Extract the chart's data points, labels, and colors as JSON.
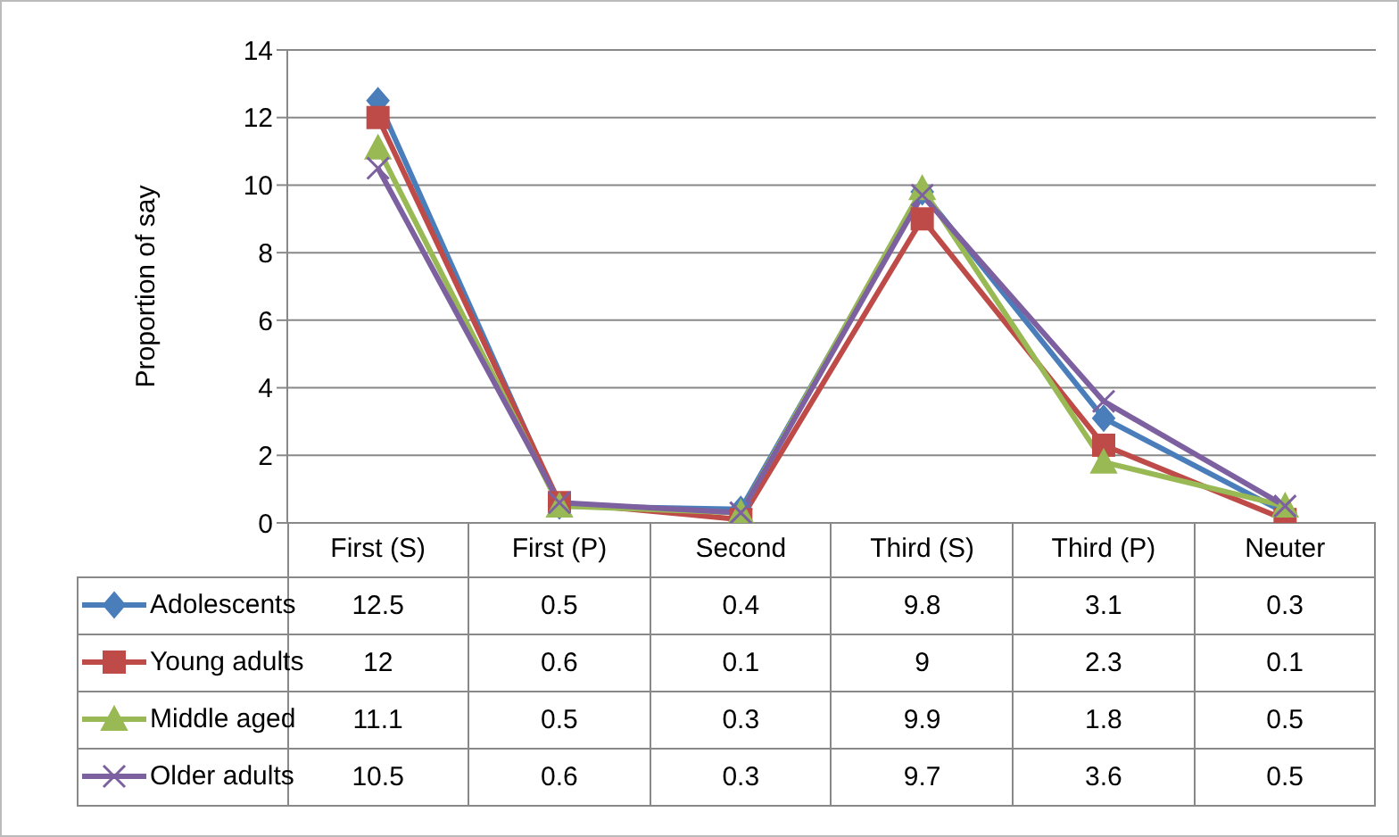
{
  "chart_data": {
    "type": "line",
    "ylabel": "Proportion of say",
    "categories": [
      "First (S)",
      "First (P)",
      "Second",
      "Third (S)",
      "Third (P)",
      "Neuter"
    ],
    "series": [
      {
        "name": "Adolescents",
        "color": "#4a7ebb",
        "marker": "diamond",
        "values": [
          12.5,
          0.5,
          0.4,
          9.8,
          3.1,
          0.3
        ]
      },
      {
        "name": "Young adults",
        "color": "#be4b48",
        "marker": "square",
        "values": [
          12,
          0.6,
          0.1,
          9,
          2.3,
          0.1
        ]
      },
      {
        "name": "Middle aged",
        "color": "#98b954",
        "marker": "triangle",
        "values": [
          11.1,
          0.5,
          0.3,
          9.9,
          1.8,
          0.5
        ]
      },
      {
        "name": "Older adults",
        "color": "#7d60a0",
        "marker": "cross",
        "values": [
          10.5,
          0.6,
          0.3,
          9.7,
          3.6,
          0.5
        ]
      }
    ],
    "ylim": [
      0,
      14
    ],
    "yticks": [
      0,
      2,
      4,
      6,
      8,
      10,
      12,
      14
    ],
    "grid": "y",
    "legend": "bottom",
    "data_labels": true,
    "line_style": "solid"
  }
}
